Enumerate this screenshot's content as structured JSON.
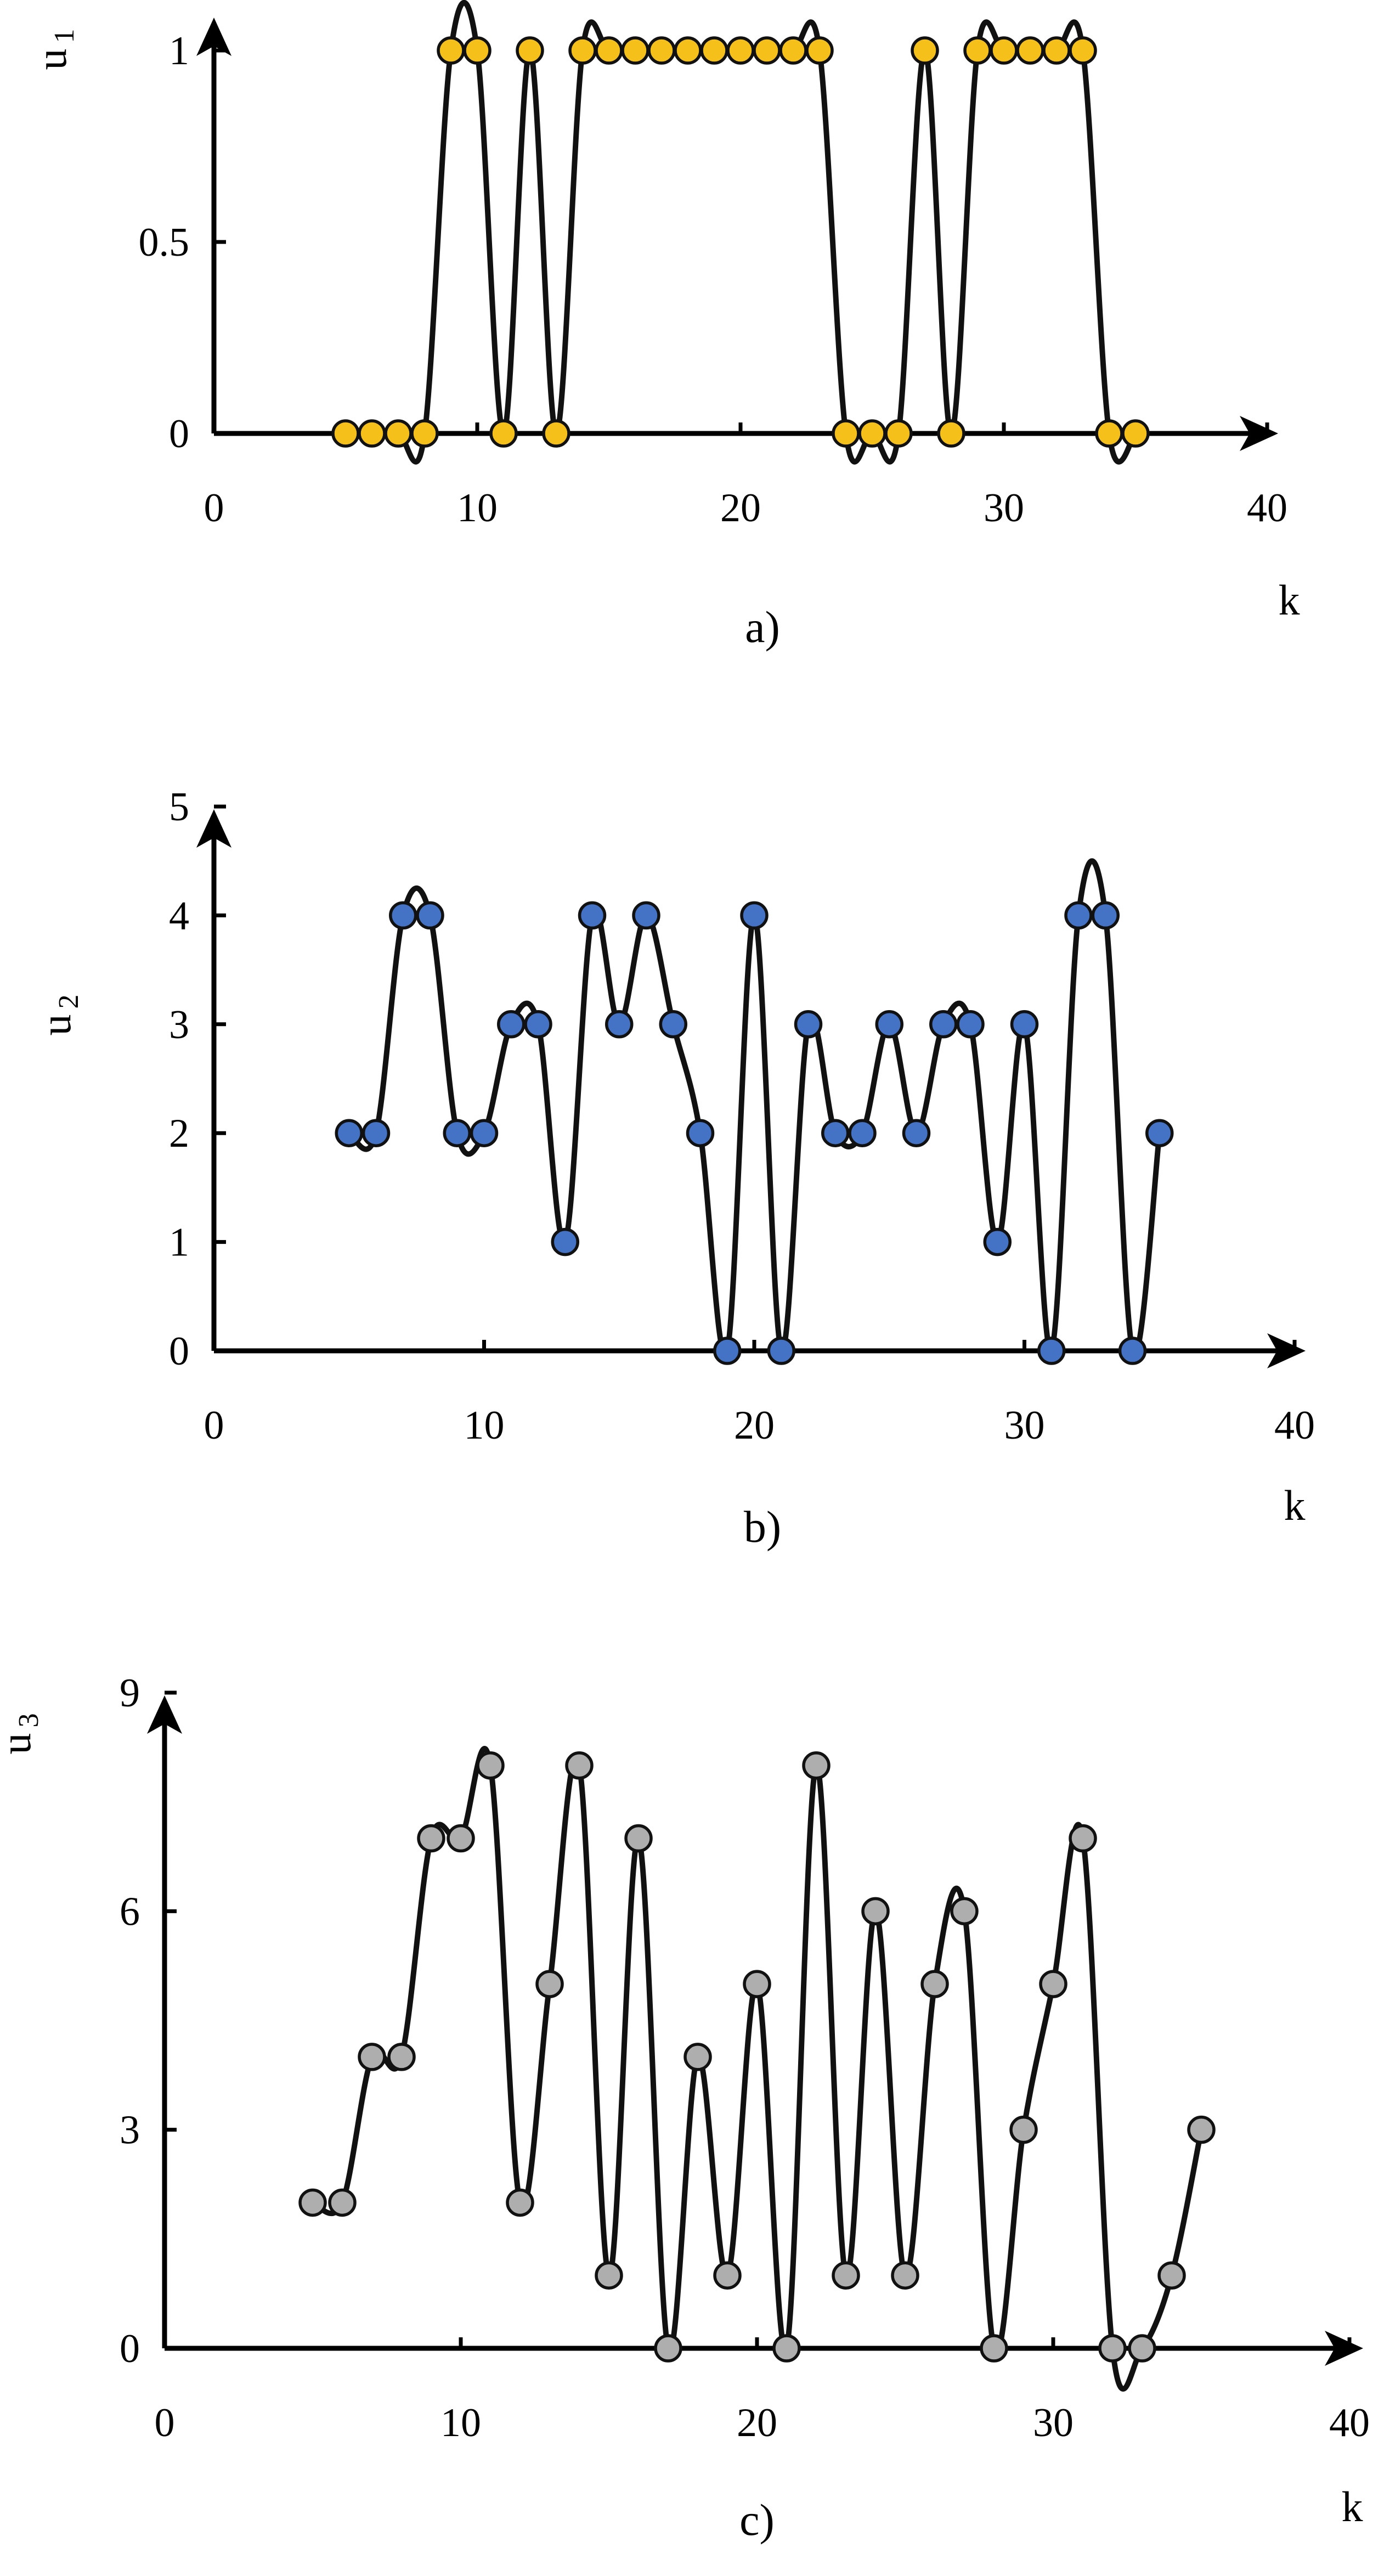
{
  "chart_data": [
    {
      "type": "line",
      "panel_label": "a)",
      "xlabel": "k",
      "ylabel_main": "u",
      "ylabel_sub": "1",
      "xlim": [
        0,
        40
      ],
      "ylim": [
        0,
        1
      ],
      "xticks": [
        0,
        10,
        20,
        30,
        40
      ],
      "yticks": [
        "0",
        "0.5",
        "1"
      ],
      "marker_color": "#F5C01A",
      "series": [
        {
          "x": [
            5,
            6,
            7,
            8,
            9,
            10,
            11,
            12,
            13,
            14,
            15,
            16,
            17,
            18,
            19,
            20,
            21,
            22,
            23,
            24,
            25,
            26,
            27,
            28,
            29,
            30,
            31,
            32,
            33,
            34,
            35
          ],
          "values": [
            0,
            0,
            0,
            0,
            1,
            1,
            0,
            1,
            0,
            1,
            1,
            1,
            1,
            1,
            1,
            1,
            1,
            1,
            1,
            0,
            0,
            0,
            1,
            0,
            1,
            1,
            1,
            1,
            1,
            0,
            0
          ]
        }
      ]
    },
    {
      "type": "line",
      "panel_label": "b)",
      "xlabel": "k",
      "ylabel_main": "u",
      "ylabel_sub": "2",
      "xlim": [
        0,
        40
      ],
      "ylim": [
        0,
        5
      ],
      "xticks": [
        0,
        10,
        20,
        30,
        40
      ],
      "yticks": [
        "0",
        "1",
        "2",
        "3",
        "4",
        "5"
      ],
      "marker_color": "#4472C4",
      "series": [
        {
          "x": [
            5,
            6,
            7,
            8,
            9,
            10,
            11,
            12,
            13,
            14,
            15,
            16,
            17,
            18,
            19,
            20,
            21,
            22,
            23,
            24,
            25,
            26,
            27,
            28,
            29,
            30,
            31,
            32,
            33,
            34,
            35
          ],
          "values": [
            2,
            2,
            4,
            4,
            2,
            2,
            3,
            3,
            1,
            4,
            3,
            4,
            3,
            2,
            0,
            4,
            0,
            3,
            2,
            2,
            3,
            2,
            3,
            3,
            1,
            3,
            0,
            4,
            4,
            0,
            2
          ]
        }
      ]
    },
    {
      "type": "line",
      "panel_label": "c)",
      "xlabel": "k",
      "ylabel_main": "u",
      "ylabel_sub": "3",
      "xlim": [
        0,
        40
      ],
      "ylim": [
        0,
        9
      ],
      "xticks": [
        0,
        10,
        20,
        30,
        40
      ],
      "yticks": [
        "0",
        "3",
        "6",
        "9"
      ],
      "marker_color": "#AEAEAE",
      "series": [
        {
          "x": [
            5,
            6,
            7,
            8,
            9,
            10,
            11,
            12,
            13,
            14,
            15,
            16,
            17,
            18,
            19,
            20,
            21,
            22,
            23,
            24,
            25,
            26,
            27,
            28,
            29,
            30,
            31,
            32,
            33,
            34,
            35
          ],
          "values": [
            2,
            2,
            4,
            4,
            7,
            7,
            8,
            2,
            5,
            8,
            1,
            7,
            0,
            4,
            1,
            5,
            0,
            8,
            1,
            6,
            1,
            5,
            6,
            0,
            3,
            5,
            7,
            0,
            0,
            1,
            3
          ]
        }
      ]
    }
  ]
}
